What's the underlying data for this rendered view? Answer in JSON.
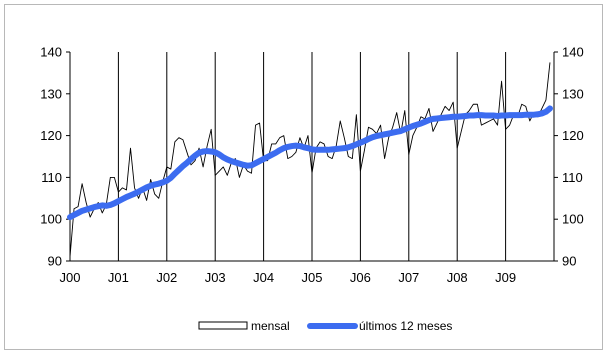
{
  "chart_data": {
    "type": "line",
    "title": "",
    "xlabel": "",
    "ylabel": "",
    "ylim": [
      90,
      140
    ],
    "y_ticks": [
      90,
      100,
      110,
      120,
      130,
      140
    ],
    "x_ticks": [
      "J00",
      "J01",
      "J02",
      "J03",
      "J04",
      "J05",
      "J06",
      "J07",
      "J08",
      "J09"
    ],
    "grid": {
      "vertical_at_year_starts": true,
      "horizontal": false
    },
    "legend": {
      "placement": "bottom"
    },
    "colors": {
      "mensal": "#000000",
      "ultimos": "#3c6cf0",
      "frame": "#b8b8b8"
    },
    "series": [
      {
        "name": "mensal",
        "start": "2000-01",
        "frequency": "monthly",
        "values": [
          91.0,
          102.5,
          103.0,
          108.5,
          104.0,
          100.5,
          102.5,
          104.0,
          101.5,
          103.5,
          110.0,
          110.0,
          106.5,
          107.5,
          107.0,
          117.0,
          107.5,
          105.0,
          107.5,
          104.5,
          109.5,
          106.0,
          105.0,
          109.0,
          112.5,
          112.0,
          118.5,
          119.5,
          119.0,
          116.0,
          113.0,
          114.0,
          117.0,
          112.5,
          117.5,
          121.5,
          110.5,
          111.5,
          112.5,
          110.5,
          113.5,
          114.5,
          110.0,
          113.0,
          111.5,
          111.0,
          122.5,
          123.0,
          114.0,
          114.0,
          118.0,
          118.0,
          119.5,
          120.0,
          114.5,
          115.0,
          116.0,
          119.5,
          117.0,
          120.0,
          111.0,
          117.0,
          118.5,
          118.0,
          115.0,
          114.5,
          117.5,
          123.5,
          119.5,
          115.0,
          114.5,
          125.0,
          111.5,
          116.5,
          122.0,
          121.5,
          120.5,
          122.5,
          114.5,
          119.5,
          122.0,
          125.5,
          120.5,
          126.0,
          115.5,
          120.0,
          122.0,
          124.5,
          124.0,
          126.5,
          121.0,
          123.0,
          125.0,
          127.0,
          126.0,
          128.0,
          117.0,
          121.0,
          125.0,
          126.0,
          127.5,
          127.5,
          122.5,
          123.0,
          123.5,
          124.0,
          122.5,
          133.0,
          121.5,
          122.5,
          125.0,
          124.5,
          127.5,
          127.0,
          123.5,
          125.5,
          124.5,
          126.5,
          128.5,
          137.5
        ]
      },
      {
        "name": "últimos 12 meses",
        "start": "2000-01",
        "frequency": "monthly",
        "values": [
          100.5,
          101.0,
          101.5,
          102.0,
          102.3,
          102.6,
          102.9,
          103.1,
          103.3,
          103.2,
          103.4,
          103.8,
          104.3,
          104.8,
          105.3,
          105.7,
          106.1,
          106.6,
          107.1,
          107.6,
          108.0,
          108.3,
          108.5,
          108.8,
          109.2,
          109.9,
          110.9,
          111.8,
          112.7,
          113.5,
          114.4,
          115.2,
          115.9,
          116.2,
          116.3,
          116.2,
          116.0,
          115.5,
          114.8,
          114.3,
          113.9,
          113.6,
          113.3,
          113.0,
          112.8,
          112.9,
          113.4,
          113.9,
          114.4,
          114.9,
          115.4,
          115.9,
          116.5,
          117.0,
          117.3,
          117.5,
          117.6,
          117.5,
          117.2,
          117.0,
          116.7,
          116.6,
          116.6,
          116.6,
          116.6,
          116.7,
          116.8,
          116.9,
          117.0,
          117.2,
          117.5,
          117.9,
          118.3,
          118.7,
          119.2,
          119.6,
          119.9,
          120.1,
          120.3,
          120.5,
          120.7,
          120.9,
          121.1,
          121.5,
          121.9,
          122.3,
          122.6,
          122.9,
          123.3,
          123.7,
          124.0,
          124.1,
          124.2,
          124.3,
          124.4,
          124.5,
          124.5,
          124.6,
          124.7,
          124.8,
          124.8,
          124.9,
          124.9,
          124.8,
          124.8,
          124.8,
          124.7,
          124.8,
          124.8,
          124.9,
          124.9,
          124.9,
          124.9,
          125.0,
          125.0,
          125.0,
          125.1,
          125.3,
          125.7,
          126.5
        ]
      }
    ]
  }
}
